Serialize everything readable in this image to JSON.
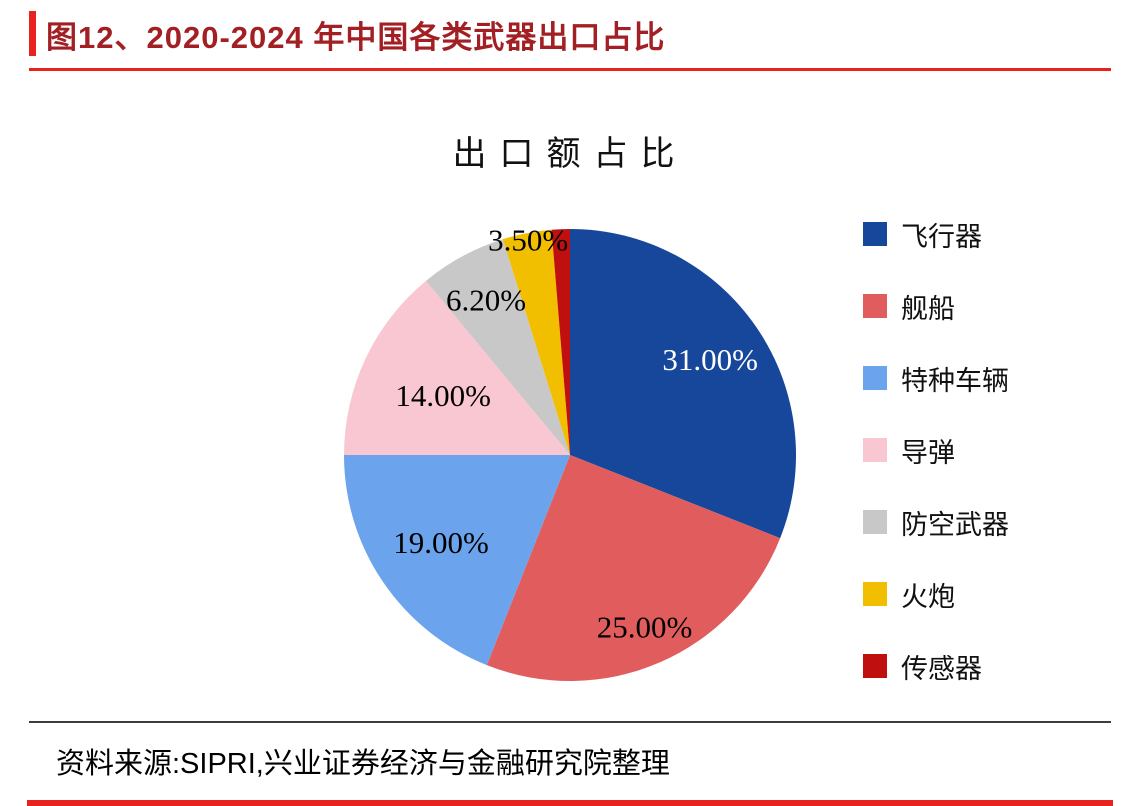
{
  "header": {
    "title": "图12、2020-2024 年中国各类武器出口占比"
  },
  "chart_data": {
    "type": "pie",
    "title": "出口额占比",
    "legend_position": "right",
    "slices": [
      {
        "label": "飞行器",
        "value": 31.0,
        "display": "31.00%",
        "color": "#17479b",
        "label_color": "#ffffff"
      },
      {
        "label": "舰船",
        "value": 25.0,
        "display": "25.00%",
        "color": "#e15d5d",
        "label_color": "#000000"
      },
      {
        "label": "特种车辆",
        "value": 19.0,
        "display": "19.00%",
        "color": "#6ba4ec",
        "label_color": "#000000"
      },
      {
        "label": "导弹",
        "value": 14.0,
        "display": "14.00%",
        "color": "#f9c7d1",
        "label_color": "#000000"
      },
      {
        "label": "防空武器",
        "value": 6.2,
        "display": "6.20%",
        "color": "#c8c8c8",
        "label_color": "#000000"
      },
      {
        "label": "火炮",
        "value": 3.5,
        "display": "3.50%",
        "color": "#f2be00",
        "label_color": "#000000"
      },
      {
        "label": "传感器",
        "value": 1.3,
        "display": "",
        "color": "#c00f0f",
        "label_color": "#000000"
      }
    ]
  },
  "footer": {
    "source": "资料来源:SIPRI,兴业证券经济与金融研究院整理"
  },
  "colors": {
    "accent_red": "#e8231f",
    "title_red": "#a21f24",
    "rule_dark": "#3d3d3d"
  }
}
